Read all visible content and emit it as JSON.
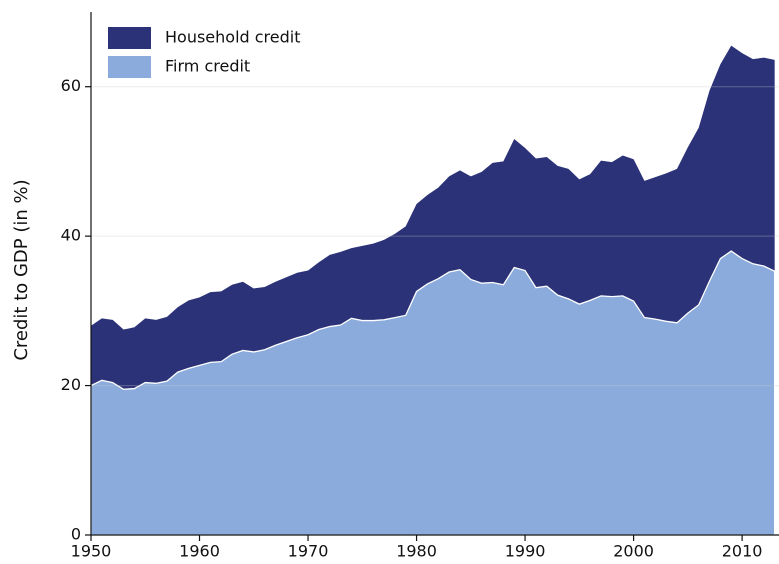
{
  "chart_data": {
    "type": "area",
    "stacked": true,
    "y_label": "Credit to GDP (in %)",
    "x": [
      1950,
      1951,
      1952,
      1953,
      1954,
      1955,
      1956,
      1957,
      1958,
      1959,
      1960,
      1961,
      1962,
      1963,
      1964,
      1965,
      1966,
      1967,
      1968,
      1969,
      1970,
      1971,
      1972,
      1973,
      1974,
      1975,
      1976,
      1977,
      1978,
      1979,
      1980,
      1981,
      1982,
      1983,
      1984,
      1985,
      1986,
      1987,
      1988,
      1989,
      1990,
      1991,
      1992,
      1993,
      1994,
      1995,
      1996,
      1997,
      1998,
      1999,
      2000,
      2001,
      2002,
      2003,
      2004,
      2005,
      2006,
      2007,
      2008,
      2009,
      2010,
      2011,
      2012,
      2013
    ],
    "series": [
      {
        "name": "Household credit",
        "color": "#2b3277",
        "values": [
          8,
          8.3,
          8.4,
          8.0,
          8.2,
          8.6,
          8.5,
          8.6,
          8.7,
          9.1,
          9.1,
          9.4,
          9.4,
          9.3,
          9.2,
          8.5,
          8.4,
          8.5,
          8.6,
          8.7,
          8.6,
          9.0,
          9.6,
          9.8,
          9.4,
          10.0,
          10.3,
          10.7,
          11.2,
          11.9,
          11.7,
          11.9,
          12.2,
          12.8,
          13.3,
          13.8,
          14.9,
          16.0,
          16.5,
          17.2,
          16.4,
          17.3,
          17.3,
          17.3,
          17.4,
          16.7,
          16.9,
          18.1,
          18.0,
          18.8,
          19.0,
          18.3,
          19.0,
          19.8,
          20.6,
          22.2,
          23.7,
          25.5,
          26.0,
          27.5,
          27.5,
          27.4,
          27.9,
          28.3
        ]
      },
      {
        "name": "Firm credit",
        "color": "#8aabdb",
        "values": [
          20,
          20.7,
          20.4,
          19.5,
          19.6,
          20.4,
          20.3,
          20.6,
          21.8,
          22.3,
          22.7,
          23.1,
          23.2,
          24.2,
          24.7,
          24.5,
          24.8,
          25.4,
          25.9,
          26.4,
          26.8,
          27.5,
          27.9,
          28.1,
          29,
          28.7,
          28.7,
          28.8,
          29.1,
          29.4,
          32.6,
          33.6,
          34.3,
          35.2,
          35.5,
          34.2,
          33.7,
          33.8,
          33.5,
          35.8,
          35.4,
          33.1,
          33.3,
          32.1,
          31.6,
          30.9,
          31.4,
          32,
          31.9,
          32,
          31.3,
          29.1,
          28.9,
          28.6,
          28.4,
          29.7,
          30.8,
          34,
          37,
          38,
          37,
          36.3,
          36,
          35.3
        ]
      }
    ],
    "xlim": [
      1950,
      2013.4
    ],
    "xticks": [
      1950,
      1960,
      1970,
      1980,
      1990,
      2000,
      2010
    ],
    "ylim": [
      0,
      70
    ],
    "yticks": [
      0,
      20,
      40,
      60
    ],
    "grid": true,
    "legend": "upper left"
  }
}
